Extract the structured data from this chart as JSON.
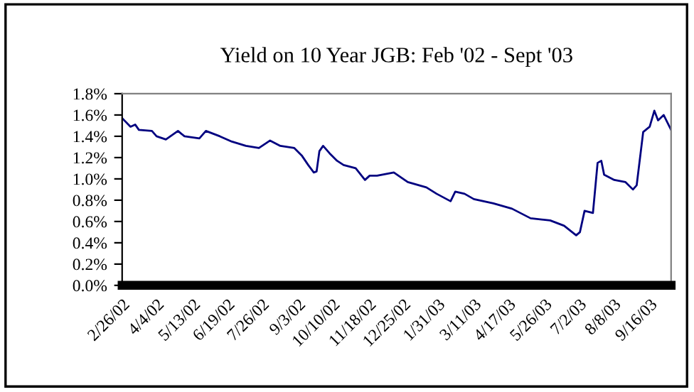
{
  "chart_data": {
    "type": "line",
    "title": "Yield on 10 Year JGB: Feb '02 - Sept '03",
    "x": [
      "2002-02-26",
      "2002-03-07",
      "2002-03-12",
      "2002-03-16",
      "2002-03-30",
      "2002-04-04",
      "2002-04-14",
      "2002-04-27",
      "2002-05-04",
      "2002-05-20",
      "2002-05-27",
      "2002-06-11",
      "2002-06-24",
      "2002-07-09",
      "2002-07-23",
      "2002-08-04",
      "2002-08-15",
      "2002-08-30",
      "2002-09-07",
      "2002-09-14",
      "2002-09-20",
      "2002-09-23",
      "2002-09-26",
      "2002-09-30",
      "2002-10-07",
      "2002-10-15",
      "2002-10-22",
      "2002-11-04",
      "2002-11-14",
      "2002-11-19",
      "2002-11-27",
      "2002-12-15",
      "2002-12-30",
      "2003-01-19",
      "2003-01-30",
      "2003-02-14",
      "2003-02-19",
      "2003-03-01",
      "2003-03-11",
      "2003-04-01",
      "2003-04-21",
      "2003-05-11",
      "2003-06-01",
      "2003-06-16",
      "2003-06-29",
      "2003-07-03",
      "2003-07-08",
      "2003-07-17",
      "2003-07-22",
      "2003-07-26",
      "2003-07-29",
      "2003-08-09",
      "2003-08-21",
      "2003-08-29",
      "2003-09-02",
      "2003-09-09",
      "2003-09-16",
      "2003-09-21",
      "2003-09-25",
      "2003-10-01",
      "2003-10-09"
    ],
    "series": [
      {
        "color": "#000080",
        "values": [
          1.57,
          1.49,
          1.51,
          1.46,
          1.45,
          1.4,
          1.37,
          1.45,
          1.4,
          1.38,
          1.45,
          1.4,
          1.35,
          1.31,
          1.29,
          1.36,
          1.31,
          1.29,
          1.22,
          1.13,
          1.06,
          1.07,
          1.26,
          1.31,
          1.24,
          1.17,
          1.13,
          1.1,
          0.99,
          1.03,
          1.03,
          1.06,
          0.97,
          0.92,
          0.86,
          0.79,
          0.88,
          0.86,
          0.81,
          0.77,
          0.72,
          0.63,
          0.61,
          0.56,
          0.47,
          0.5,
          0.7,
          0.68,
          1.15,
          1.17,
          1.04,
          0.99,
          0.97,
          0.9,
          0.94,
          1.44,
          1.49,
          1.64,
          1.55,
          1.6,
          1.46
        ]
      }
    ],
    "xlim": [
      "2002-02-26",
      "2003-10-09"
    ],
    "xticks": [
      {
        "value": "2002-02-26",
        "label": "2/26/02"
      },
      {
        "value": "2002-04-04",
        "label": "4/4/02"
      },
      {
        "value": "2002-05-13",
        "label": "5/13/02"
      },
      {
        "value": "2002-06-19",
        "label": "6/19/02"
      },
      {
        "value": "2002-07-26",
        "label": "7/26/02"
      },
      {
        "value": "2002-09-03",
        "label": "9/3/02"
      },
      {
        "value": "2002-10-10",
        "label": "10/10/02"
      },
      {
        "value": "2002-11-18",
        "label": "11/18/02"
      },
      {
        "value": "2002-12-25",
        "label": "12/25/02"
      },
      {
        "value": "2003-01-31",
        "label": "1/31/03"
      },
      {
        "value": "2003-03-11",
        "label": "3/11/03"
      },
      {
        "value": "2003-04-17",
        "label": "4/17/03"
      },
      {
        "value": "2003-05-26",
        "label": "5/26/03"
      },
      {
        "value": "2003-07-02",
        "label": "7/2/03"
      },
      {
        "value": "2003-08-08",
        "label": "8/8/03"
      },
      {
        "value": "2003-09-16",
        "label": "9/16/03"
      }
    ],
    "ylim": [
      0,
      1.8
    ],
    "yticks": [
      {
        "value": 0,
        "label": "0.0%"
      },
      {
        "value": 0.2,
        "label": "0.2%"
      },
      {
        "value": 0.4,
        "label": "0.4%"
      },
      {
        "value": 0.6,
        "label": "0.6%"
      },
      {
        "value": 0.8,
        "label": "0.8%"
      },
      {
        "value": 1.0,
        "label": "1.0%"
      },
      {
        "value": 1.2,
        "label": "1.2%"
      },
      {
        "value": 1.4,
        "label": "1.4%"
      },
      {
        "value": 1.6,
        "label": "1.6%"
      },
      {
        "value": 1.8,
        "label": "1.8%"
      }
    ],
    "grid": false,
    "legend": false,
    "marker": "none",
    "line_style": "solid"
  }
}
